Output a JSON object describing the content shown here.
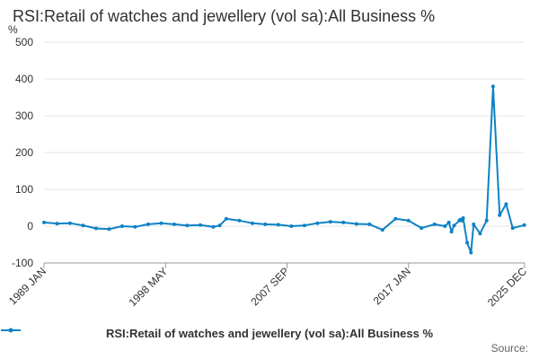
{
  "colors": {
    "series": "#0d82c5",
    "grid": "#e6e6e6",
    "axis": "#999999",
    "text": "#323132"
  },
  "chart_data": {
    "type": "line",
    "title": "RSI:Retail of watches and jewellery (vol sa):All Business %",
    "ylabel": "%",
    "xlabel": "",
    "ylim": [
      -100,
      500
    ],
    "yticks": [
      500,
      400,
      300,
      200,
      100,
      0,
      -100
    ],
    "x_range": [
      "1989 JAN",
      "2025 DEC"
    ],
    "x_tick_labels": [
      "1989 JAN",
      "1998 MAY",
      "2007 SEP",
      "2017 JAN",
      "2025 DEC"
    ],
    "grid": true,
    "legend_position": "bottom",
    "series": [
      {
        "name": "RSI:Retail of watches and jewellery (vol sa):All Business %",
        "x": [
          1989.0,
          1990.0,
          1991.0,
          1992.0,
          1993.0,
          1994.0,
          1995.0,
          1996.0,
          1997.0,
          1998.0,
          1999.0,
          2000.0,
          2001.0,
          2002.0,
          2002.5,
          2003.0,
          2004.0,
          2005.0,
          2006.0,
          2007.0,
          2008.0,
          2009.0,
          2010.0,
          2011.0,
          2012.0,
          2013.0,
          2014.0,
          2015.0,
          2016.0,
          2017.0,
          2018.0,
          2019.0,
          2019.8,
          2020.1,
          2020.3,
          2020.5,
          2020.9,
          2021.0,
          2021.1,
          2021.2,
          2021.5,
          2021.8,
          2022.0,
          2022.5,
          2023.0,
          2023.5,
          2024.0,
          2024.5,
          2025.0,
          2025.9
        ],
        "values": [
          10,
          7,
          8,
          2,
          -6,
          -8,
          0,
          -2,
          5,
          8,
          5,
          2,
          3,
          -2,
          2,
          20,
          15,
          8,
          5,
          4,
          0,
          2,
          8,
          12,
          10,
          6,
          5,
          -10,
          20,
          15,
          -5,
          5,
          0,
          10,
          -15,
          2,
          15,
          18,
          15,
          22,
          -45,
          -72,
          5,
          -20,
          15,
          380,
          30,
          60,
          -5,
          3
        ]
      }
    ]
  },
  "legend": {
    "label": "RSI:Retail of watches and jewellery (vol sa):All Business %"
  },
  "source": {
    "label": "Source:"
  }
}
